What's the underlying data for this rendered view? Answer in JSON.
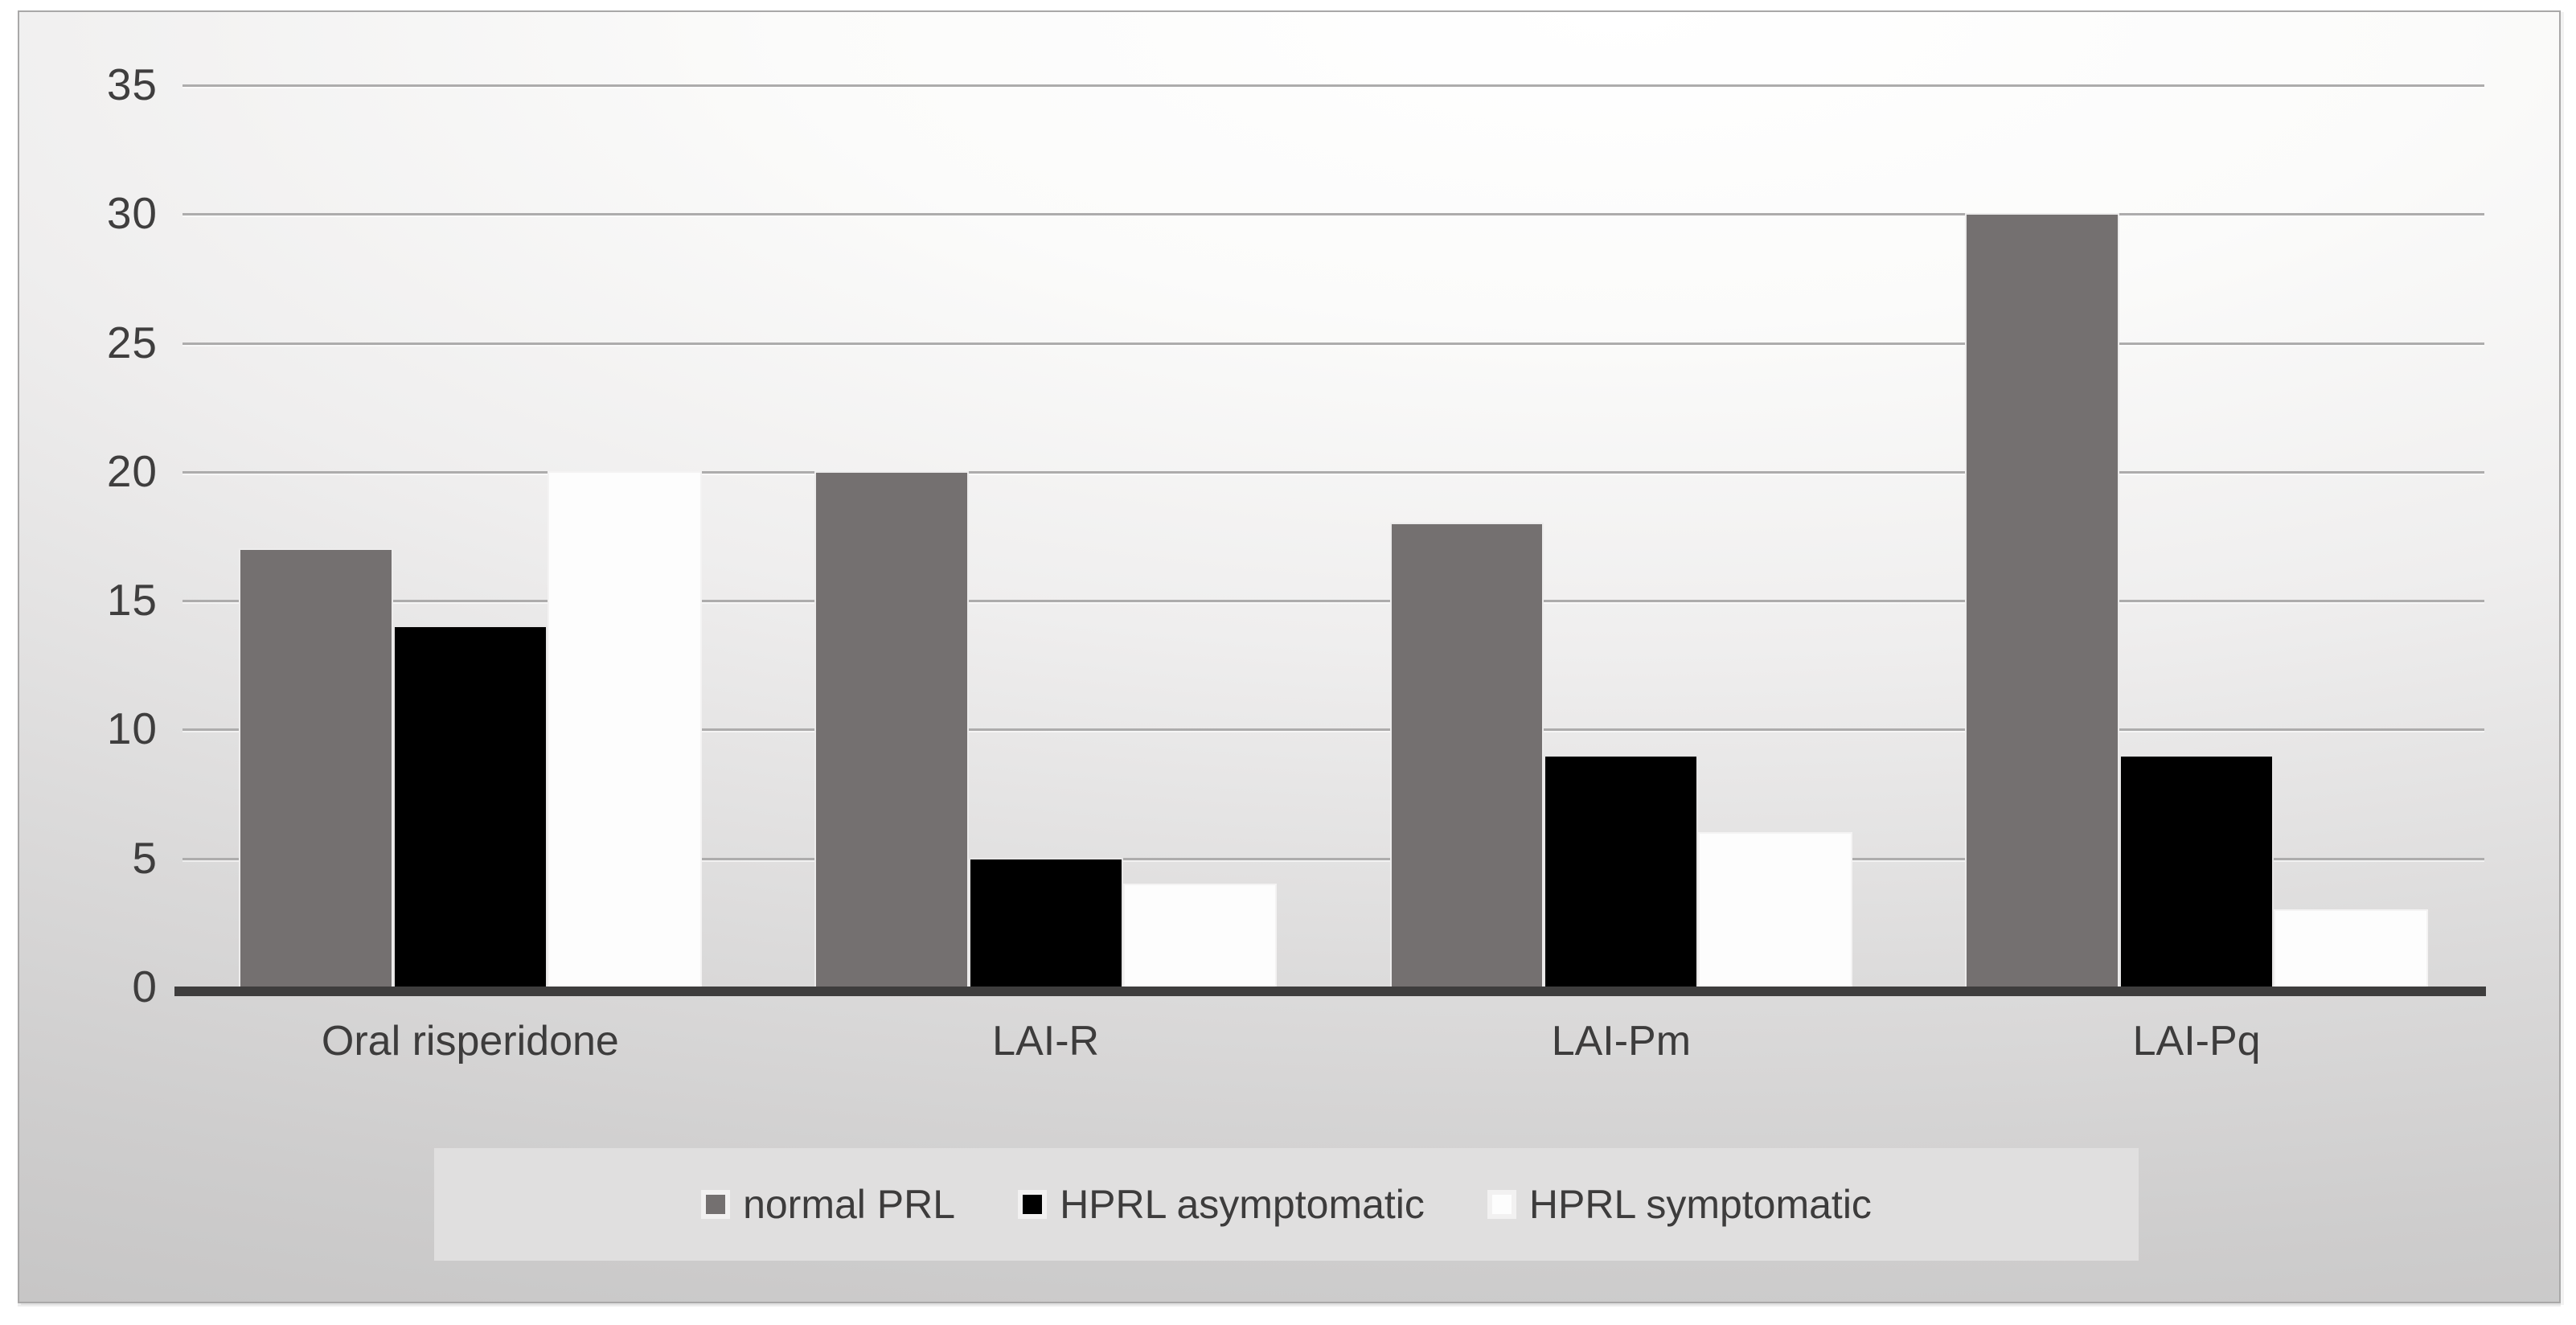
{
  "chart_data": {
    "type": "bar",
    "title": "",
    "xlabel": "",
    "ylabel": "",
    "categories": [
      "Oral risperidone",
      "LAI-R",
      "LAI-Pm",
      "LAI-Pq"
    ],
    "series": [
      {
        "name": "normal PRL",
        "color": "#747070",
        "values": [
          17,
          20,
          18,
          30
        ]
      },
      {
        "name": "HPRL asymptomatic",
        "color": "#000000",
        "values": [
          14,
          5,
          9,
          9
        ]
      },
      {
        "name": "HPRL symptomatic",
        "color": "#fdfdfd",
        "values": [
          20,
          4,
          6,
          3
        ]
      }
    ],
    "ylim": [
      0,
      35
    ],
    "yticks": [
      0,
      5,
      10,
      15,
      20,
      25,
      30,
      35
    ],
    "grid": "horizontal",
    "legend_position": "bottom"
  },
  "style": {
    "axis_line_color": "#3e3d3d",
    "gridline_color": "#adacac",
    "tick_label_color": "#3f3e3e",
    "legend_background": "#e0dfdf",
    "frame_border_color": "#a9a8a8"
  }
}
